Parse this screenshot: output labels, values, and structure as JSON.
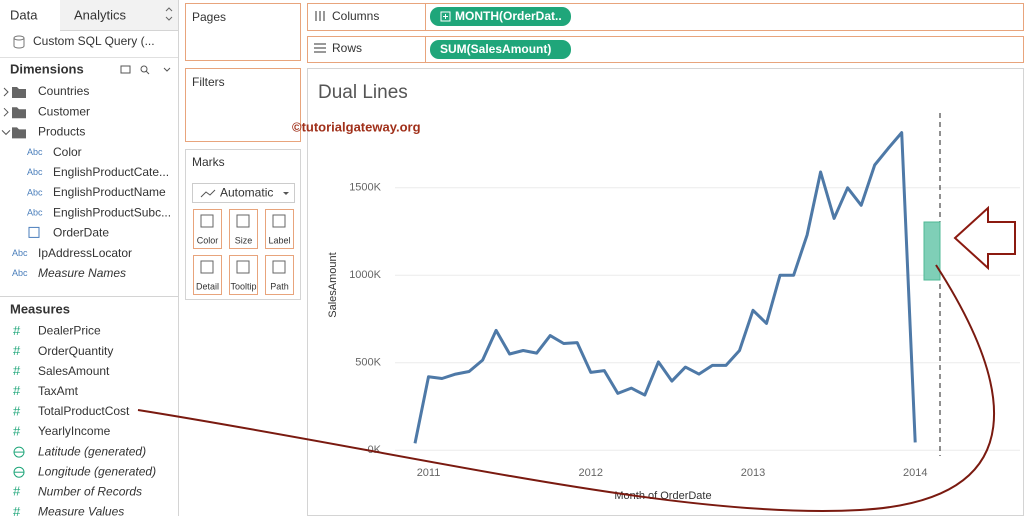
{
  "sidebar": {
    "tabs": [
      "Data",
      "Analytics"
    ],
    "datasource": "Custom SQL Query (...",
    "dimensions_title": "Dimensions",
    "dimension_icon": "Abc",
    "measure_icon": "#",
    "dimensions": [
      {
        "name": "Countries",
        "kind": "folder"
      },
      {
        "name": "Customer",
        "kind": "folder"
      },
      {
        "name": "Products",
        "kind": "folder",
        "open": true,
        "children": [
          {
            "name": "Color",
            "kind": "text"
          },
          {
            "name": "EnglishProductCate...",
            "kind": "text"
          },
          {
            "name": "EnglishProductName",
            "kind": "text"
          },
          {
            "name": "EnglishProductSubc...",
            "kind": "text"
          },
          {
            "name": "OrderDate",
            "kind": "date"
          }
        ]
      },
      {
        "name": "IpAddressLocator",
        "kind": "text"
      },
      {
        "name": "Measure Names",
        "kind": "text",
        "italic": true
      }
    ],
    "measures_title": "Measures",
    "measures": [
      {
        "name": "DealerPrice",
        "kind": "number"
      },
      {
        "name": "OrderQuantity",
        "kind": "number"
      },
      {
        "name": "SalesAmount",
        "kind": "number"
      },
      {
        "name": "TaxAmt",
        "kind": "number"
      },
      {
        "name": "TotalProductCost",
        "kind": "number"
      },
      {
        "name": "YearlyIncome",
        "kind": "number"
      },
      {
        "name": "Latitude (generated)",
        "kind": "geo",
        "italic": true
      },
      {
        "name": "Longitude (generated)",
        "kind": "geo",
        "italic": true
      },
      {
        "name": "Number of Records",
        "kind": "number",
        "italic": true
      },
      {
        "name": "Measure Values",
        "kind": "number",
        "italic": true
      }
    ]
  },
  "shelves": {
    "pages": "Pages",
    "filters": "Filters",
    "marks": "Marks",
    "mark_type": "Automatic",
    "mark_buttons": [
      "Color",
      "Size",
      "Label",
      "Detail",
      "Tooltip",
      "Path"
    ],
    "columns": "Columns",
    "columns_pill": "MONTH(OrderDat..",
    "rows": "Rows",
    "rows_pill": "SUM(SalesAmount)"
  },
  "watermark": "©tutorialgateway.org",
  "chart_data": {
    "type": "line",
    "title": "Dual Lines",
    "x_label": "Month of OrderDate",
    "y_label": "SalesAmount",
    "categories": [
      null,
      "2011",
      null,
      null,
      null,
      null,
      null,
      null,
      null,
      null,
      null,
      null,
      null,
      "2012",
      null,
      null,
      null,
      null,
      null,
      null,
      null,
      null,
      null,
      null,
      null,
      "2013",
      null,
      null,
      null,
      null,
      null,
      null,
      null,
      null,
      null,
      null,
      null,
      "2014"
    ],
    "series": [
      {
        "name": "SalesAmount",
        "color": "#4e79a7",
        "values": [
          40000,
          420000,
          410000,
          435000,
          450000,
          515000,
          685000,
          550000,
          570000,
          555000,
          655000,
          610000,
          615000,
          445000,
          455000,
          325000,
          355000,
          315000,
          505000,
          395000,
          475000,
          435000,
          485000,
          485000,
          570000,
          800000,
          725000,
          1000000,
          1000000,
          1230000,
          1590000,
          1325000,
          1500000,
          1400000,
          1630000,
          1725000,
          1815000,
          45000
        ]
      }
    ],
    "ylim": [
      -50000,
      1950000
    ],
    "yticks": [
      {
        "value": 0,
        "label": "0K"
      },
      {
        "value": 500000,
        "label": "500K"
      },
      {
        "value": 1000000,
        "label": "1000K"
      },
      {
        "value": 1500000,
        "label": "1500K"
      }
    ],
    "grid": true
  }
}
